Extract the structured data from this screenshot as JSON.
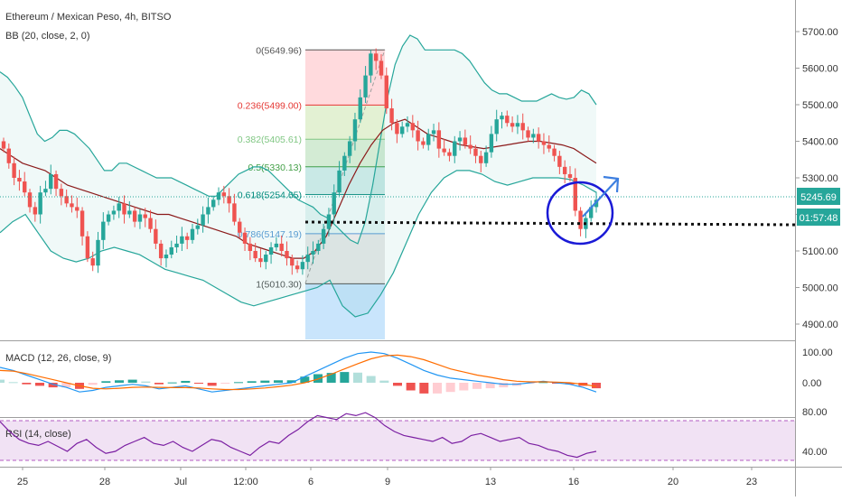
{
  "header": {
    "symbol_title": "Ethereum / Mexican Peso, 4h, BITSO",
    "bb_label": "BB (20, close, 2, 0)",
    "macd_label": "MACD (12, 26, close, 9)",
    "rsi_label": "RSI (14, close)"
  },
  "price_axis": {
    "ticks": [
      "5700.00",
      "5600.00",
      "5500.00",
      "5400.00",
      "5300.00",
      "5200.00",
      "5100.00",
      "5000.00",
      "4900.00"
    ],
    "last_price": "5245.69",
    "countdown": "01:57:48"
  },
  "macd_axis": {
    "ticks": [
      "100.00",
      "0.00"
    ]
  },
  "rsi_axis": {
    "ticks": [
      "80.00",
      "40.00"
    ]
  },
  "time_axis": {
    "ticks": [
      "25",
      "28",
      "Jul",
      "12:00",
      "6",
      "9",
      "13",
      "16",
      "20",
      "23"
    ]
  },
  "fibonacci": {
    "levels": [
      {
        "label": "0(5649.96)",
        "price": 5649.96,
        "color": "#555555"
      },
      {
        "label": "0.236(5499.00)",
        "price": 5499.0,
        "color": "#e53935"
      },
      {
        "label": "0.382(5405.61)",
        "price": 5405.61,
        "color": "#81c784"
      },
      {
        "label": "0.5(5330.13)",
        "price": 5330.13,
        "color": "#43a047"
      },
      {
        "label": "0.618(5254.65)",
        "price": 5254.65,
        "color": "#00897b"
      },
      {
        "label": "0.786(5147.19)",
        "price": 5147.19,
        "color": "#5c9bd6"
      },
      {
        "label": "1(5010.30)",
        "price": 5010.3,
        "color": "#555555"
      }
    ]
  },
  "colors": {
    "up": "#26a69a",
    "down": "#ef5350",
    "bb_band": "#26a69a",
    "bb_basis": "#8b1a1a",
    "macd_line": "#2196f3",
    "signal_line": "#ff6d00",
    "rsi_line": "#7b1fa2",
    "rsi_band": "#e1bee7",
    "annotation": "#1a1ad6",
    "arrow": "#3d7fe0"
  },
  "chart_data": {
    "type": "candlestick",
    "title": "Ethereum / Mexican Peso, 4h, BITSO",
    "x_ticks": [
      "25",
      "28",
      "Jul",
      "12:00",
      "6",
      "9",
      "13",
      "16",
      "20",
      "23"
    ],
    "ylim": [
      4860,
      5760
    ],
    "y_ticks": [
      4900,
      5000,
      5100,
      5200,
      5300,
      5400,
      5500,
      5600,
      5700
    ],
    "last_price": 5245.69,
    "close_series": [
      5380,
      5340,
      5300,
      5290,
      5260,
      5220,
      5200,
      5260,
      5270,
      5310,
      5270,
      5250,
      5230,
      5220,
      5210,
      5140,
      5080,
      5060,
      5130,
      5180,
      5200,
      5210,
      5230,
      5200,
      5210,
      5180,
      5200,
      5190,
      5160,
      5120,
      5080,
      5090,
      5110,
      5120,
      5140,
      5130,
      5160,
      5170,
      5200,
      5220,
      5240,
      5260,
      5250,
      5230,
      5180,
      5150,
      5120,
      5100,
      5080,
      5070,
      5090,
      5110,
      5120,
      5100,
      5080,
      5060,
      5050,
      5070,
      5090,
      5100,
      5120,
      5160,
      5200,
      5260,
      5320,
      5360,
      5400,
      5460,
      5520,
      5580,
      5640,
      5620,
      5580,
      5490,
      5450,
      5420,
      5440,
      5450,
      5430,
      5400,
      5390,
      5420,
      5430,
      5380,
      5370,
      5360,
      5400,
      5410,
      5390,
      5380,
      5360,
      5340,
      5370,
      5420,
      5460,
      5470,
      5450,
      5440,
      5450,
      5430,
      5410,
      5420,
      5400,
      5390,
      5380,
      5360,
      5330,
      5310,
      5300,
      5210,
      5160,
      5190,
      5220,
      5240
    ],
    "bb_upper": [
      5590,
      5575,
      5550,
      5520,
      5470,
      5420,
      5400,
      5410,
      5430,
      5430,
      5420,
      5400,
      5380,
      5350,
      5320,
      5320,
      5340,
      5340,
      5330,
      5320,
      5310,
      5300,
      5300,
      5300,
      5290,
      5280,
      5270,
      5260,
      5250,
      5250,
      5270,
      5290,
      5310,
      5320,
      5330,
      5330,
      5320,
      5300,
      5280,
      5260,
      5240,
      5230,
      5220,
      5200,
      5190,
      5170,
      5150,
      5130,
      5120,
      5180,
      5280,
      5400,
      5520,
      5610,
      5660,
      5690,
      5680,
      5650,
      5650,
      5650,
      5650,
      5650,
      5640,
      5620,
      5590,
      5560,
      5540,
      5530,
      5530,
      5520,
      5510,
      5510,
      5510,
      5520,
      5530,
      5520,
      5515,
      5520,
      5540,
      5530,
      5500
    ],
    "bb_basis": [
      5380,
      5360,
      5340,
      5330,
      5320,
      5300,
      5280,
      5270,
      5260,
      5250,
      5240,
      5230,
      5220,
      5210,
      5200,
      5200,
      5190,
      5180,
      5170,
      5160,
      5150,
      5140,
      5120,
      5110,
      5100,
      5090,
      5080,
      5080,
      5100,
      5140,
      5210,
      5280,
      5340,
      5390,
      5430,
      5450,
      5460,
      5440,
      5420,
      5410,
      5400,
      5390,
      5385,
      5380,
      5385,
      5390,
      5395,
      5400,
      5400,
      5395,
      5390,
      5380,
      5360,
      5340
    ],
    "bb_lower": [
      5150,
      5180,
      5200,
      5150,
      5100,
      5080,
      5070,
      5080,
      5100,
      5110,
      5100,
      5090,
      5070,
      5050,
      5040,
      5030,
      5020,
      5000,
      4980,
      4960,
      4950,
      4960,
      4970,
      4980,
      4990,
      5000,
      5020,
      4950,
      4920,
      4930,
      4980,
      5040,
      5120,
      5200,
      5260,
      5300,
      5320,
      5320,
      5310,
      5290,
      5280,
      5290,
      5300,
      5300,
      5300,
      5295,
      5280,
      5260
    ],
    "macd_line": [
      50,
      40,
      25,
      10,
      -5,
      -15,
      -30,
      -25,
      -15,
      -10,
      -5,
      -10,
      -20,
      -15,
      -10,
      -20,
      -30,
      -25,
      -20,
      -15,
      -10,
      -5,
      0,
      20,
      40,
      60,
      80,
      95,
      100,
      95,
      80,
      60,
      40,
      25,
      15,
      10,
      5,
      0,
      -5,
      -5,
      0,
      5,
      0,
      -5,
      -15,
      -30
    ],
    "signal_line": [
      40,
      38,
      30,
      20,
      10,
      0,
      -10,
      -18,
      -20,
      -18,
      -15,
      -14,
      -15,
      -16,
      -16,
      -17,
      -20,
      -22,
      -22,
      -20,
      -17,
      -13,
      -8,
      0,
      12,
      28,
      45,
      62,
      78,
      88,
      90,
      85,
      75,
      60,
      45,
      35,
      25,
      18,
      10,
      5,
      3,
      3,
      2,
      0,
      -5,
      -12
    ],
    "rsi": [
      70,
      60,
      52,
      48,
      46,
      50,
      45,
      40,
      48,
      52,
      44,
      38,
      40,
      46,
      50,
      54,
      48,
      46,
      50,
      44,
      40,
      46,
      52,
      50,
      44,
      40,
      36,
      44,
      50,
      48,
      56,
      62,
      70,
      76,
      74,
      72,
      78,
      76,
      79,
      74,
      66,
      60,
      56,
      54,
      52,
      50,
      54,
      48,
      50,
      56,
      58,
      54,
      50,
      52,
      54,
      48,
      46,
      42,
      40,
      36,
      34,
      38,
      40
    ]
  }
}
